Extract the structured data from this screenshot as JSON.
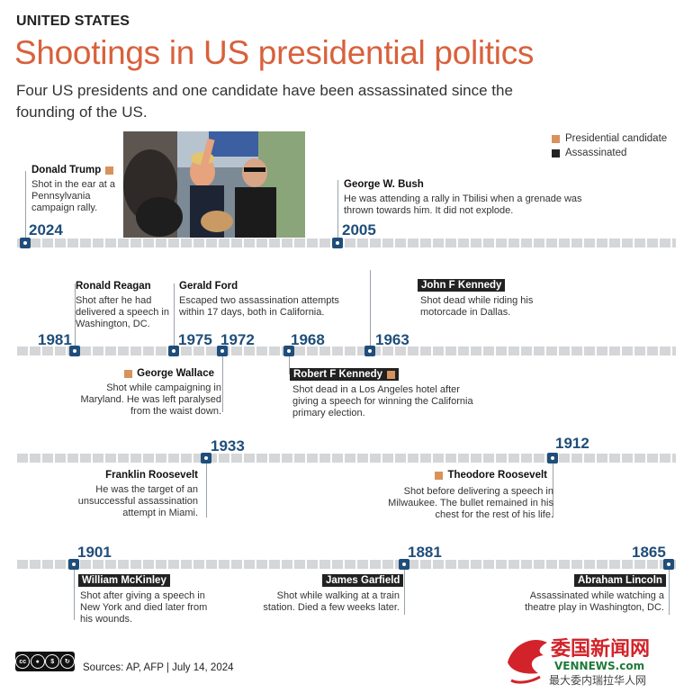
{
  "header": {
    "kicker": "UNITED STATES",
    "title": "Shootings in US presidential politics",
    "subtitle": "Four US presidents and one candidate have been assassinated since the founding of the US."
  },
  "legend": [
    {
      "label": "Presidential candidate",
      "color": "#d8925c"
    },
    {
      "label": "Assassinated",
      "color": "#222222"
    }
  ],
  "events": {
    "trump": {
      "year": "2024",
      "name": "Donald Trump",
      "desc": "Shot in the ear at a Pennsylvania campaign rally."
    },
    "bush": {
      "year": "2005",
      "name": "George W. Bush",
      "desc": "He was attending a rally in Tbilisi when a grenade was thrown towards him. It did not explode."
    },
    "reagan": {
      "year": "1981",
      "name": "Ronald Reagan",
      "desc": "Shot after he had delivered a speech in Washington, DC."
    },
    "ford": {
      "year": "1975",
      "name": "Gerald Ford",
      "desc": "Escaped two assassination attempts within 17 days, both in California."
    },
    "wallace": {
      "year": "1972",
      "name": "George Wallace",
      "desc": "Shot while campaigning in Maryland. He was left paralysed from the waist down."
    },
    "rfk": {
      "year": "1968",
      "name": "Robert F Kennedy",
      "desc": "Shot dead in a Los Angeles hotel after giving a speech for winning the California primary election."
    },
    "jfk": {
      "year": "1963",
      "name": "John F Kennedy",
      "desc": "Shot dead while riding his motorcade in Dallas."
    },
    "fdr": {
      "year": "1933",
      "name": "Franklin Roosevelt",
      "desc": "He was the target of an unsuccessful assassination attempt in Miami."
    },
    "teddy": {
      "year": "1912",
      "name": "Theodore Roosevelt",
      "desc": "Shot before delivering a speech in Milwaukee. The bullet remained in his chest for the rest of his life."
    },
    "mckinley": {
      "year": "1901",
      "name": "William McKinley",
      "desc": "Shot after giving a speech in New York and died later from his wounds."
    },
    "garfield": {
      "year": "1881",
      "name": "James Garfield",
      "desc": "Shot while walking at a train station. Died a few weeks later."
    },
    "lincoln": {
      "year": "1865",
      "name": "Abraham Lincoln",
      "desc": "Assassinated while watching a theatre play in Washington, DC."
    }
  },
  "footer": {
    "license": "cc BY NC SA",
    "sources": "Sources:  AP, AFP  |  July 14, 2024"
  },
  "watermark": {
    "line1": "委国新闻网",
    "line2": "VENNEWS.com",
    "line3": "最大委内瑞拉华人网"
  }
}
